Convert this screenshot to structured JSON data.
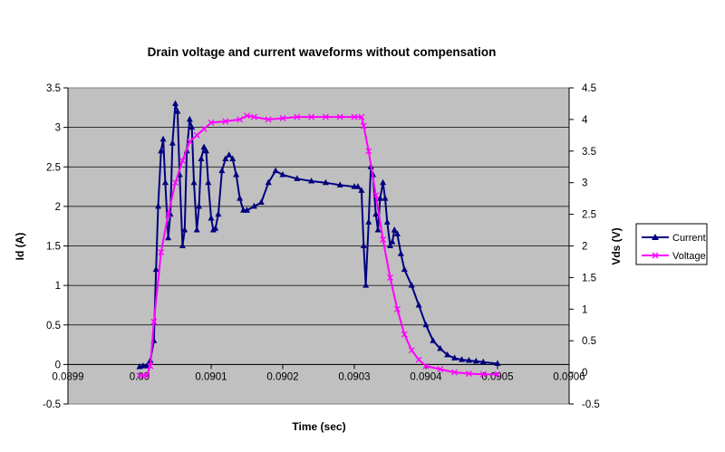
{
  "chart_data": {
    "type": "line",
    "title": "Drain voltage and current waveforms without compensation",
    "xlabel": "Time (sec)",
    "ylabel": "Id (A)",
    "y2label": "Vds (V)",
    "xlim": [
      0.0899,
      0.0906
    ],
    "ylim": [
      -0.5,
      3.5
    ],
    "y2lim": [
      -0.5,
      4.5
    ],
    "xticks": [
      0.0899,
      0.09,
      0.0901,
      0.0902,
      0.0903,
      0.0904,
      0.0905,
      0.0906
    ],
    "xtick_labels": [
      "0.0899",
      "0.09",
      "0.0901",
      "0.0902",
      "0.0903",
      "0.0904",
      "0.0905",
      "0.0906"
    ],
    "yticks": [
      -0.5,
      0,
      0.5,
      1,
      1.5,
      2,
      2.5,
      3,
      3.5
    ],
    "ytick_labels": [
      "-0.5",
      "0",
      "0.5",
      "1",
      "1.5",
      "2",
      "2.5",
      "3",
      "3.5"
    ],
    "y2ticks": [
      -0.5,
      0,
      0.5,
      1,
      1.5,
      2,
      2.5,
      3,
      3.5,
      4,
      4.5
    ],
    "y2tick_labels": [
      "-0.5",
      "0",
      "0.5",
      "1",
      "1.5",
      "2",
      "2.5",
      "3",
      "3.5",
      "4",
      "4.5"
    ],
    "grid": true,
    "plot_background": "#c0c0c0",
    "legend_position": "right",
    "series": [
      {
        "name": "Current",
        "axis": "left",
        "color": "#000080",
        "marker": "triangle",
        "points": [
          [
            0.09,
            -0.03
          ],
          [
            0.090005,
            -0.02
          ],
          [
            0.09001,
            -0.02
          ],
          [
            0.090015,
            0.05
          ],
          [
            0.09002,
            0.3
          ],
          [
            0.090023,
            1.2
          ],
          [
            0.090026,
            2.0
          ],
          [
            0.09003,
            2.7
          ],
          [
            0.090033,
            2.85
          ],
          [
            0.090036,
            2.3
          ],
          [
            0.09004,
            1.6
          ],
          [
            0.090043,
            1.9
          ],
          [
            0.090046,
            2.8
          ],
          [
            0.09005,
            3.3
          ],
          [
            0.090053,
            3.2
          ],
          [
            0.090056,
            2.4
          ],
          [
            0.09006,
            1.5
          ],
          [
            0.090063,
            1.7
          ],
          [
            0.090066,
            2.7
          ],
          [
            0.09007,
            3.1
          ],
          [
            0.090073,
            3.0
          ],
          [
            0.090076,
            2.3
          ],
          [
            0.09008,
            1.7
          ],
          [
            0.090083,
            2.0
          ],
          [
            0.090086,
            2.6
          ],
          [
            0.09009,
            2.75
          ],
          [
            0.090093,
            2.7
          ],
          [
            0.090096,
            2.3
          ],
          [
            0.0901,
            1.85
          ],
          [
            0.090103,
            1.7
          ],
          [
            0.090106,
            1.72
          ],
          [
            0.09011,
            1.9
          ],
          [
            0.090115,
            2.45
          ],
          [
            0.09012,
            2.6
          ],
          [
            0.090125,
            2.65
          ],
          [
            0.09013,
            2.6
          ],
          [
            0.090135,
            2.4
          ],
          [
            0.09014,
            2.1
          ],
          [
            0.090145,
            1.95
          ],
          [
            0.09015,
            1.95
          ],
          [
            0.09016,
            2.0
          ],
          [
            0.09017,
            2.05
          ],
          [
            0.09018,
            2.3
          ],
          [
            0.09019,
            2.45
          ],
          [
            0.0902,
            2.4
          ],
          [
            0.09022,
            2.35
          ],
          [
            0.09024,
            2.32
          ],
          [
            0.09026,
            2.3
          ],
          [
            0.09028,
            2.27
          ],
          [
            0.0903,
            2.25
          ],
          [
            0.090305,
            2.25
          ],
          [
            0.09031,
            2.2
          ],
          [
            0.090313,
            1.5
          ],
          [
            0.090316,
            1.0
          ],
          [
            0.09032,
            1.8
          ],
          [
            0.090323,
            2.5
          ],
          [
            0.090326,
            2.4
          ],
          [
            0.09033,
            1.9
          ],
          [
            0.090333,
            1.7
          ],
          [
            0.090336,
            2.1
          ],
          [
            0.09034,
            2.3
          ],
          [
            0.090343,
            2.1
          ],
          [
            0.090346,
            1.8
          ],
          [
            0.09035,
            1.5
          ],
          [
            0.090353,
            1.55
          ],
          [
            0.090356,
            1.7
          ],
          [
            0.09036,
            1.65
          ],
          [
            0.090365,
            1.4
          ],
          [
            0.09037,
            1.2
          ],
          [
            0.09038,
            1.0
          ],
          [
            0.09039,
            0.75
          ],
          [
            0.0904,
            0.5
          ],
          [
            0.09041,
            0.3
          ],
          [
            0.09042,
            0.2
          ],
          [
            0.09043,
            0.12
          ],
          [
            0.09044,
            0.08
          ],
          [
            0.09045,
            0.06
          ],
          [
            0.09046,
            0.05
          ],
          [
            0.09047,
            0.04
          ],
          [
            0.09048,
            0.03
          ],
          [
            0.0905,
            0.01
          ]
        ]
      },
      {
        "name": "Voltage",
        "axis": "right",
        "color": "#ff00ff",
        "marker": "x",
        "points": [
          [
            0.09,
            -0.05
          ],
          [
            0.09001,
            -0.05
          ],
          [
            0.090015,
            0.1
          ],
          [
            0.09002,
            0.8
          ],
          [
            0.09003,
            1.9
          ],
          [
            0.09004,
            2.5
          ],
          [
            0.09005,
            3.0
          ],
          [
            0.09006,
            3.35
          ],
          [
            0.09007,
            3.65
          ],
          [
            0.09008,
            3.75
          ],
          [
            0.09009,
            3.85
          ],
          [
            0.0901,
            3.95
          ],
          [
            0.09012,
            3.97
          ],
          [
            0.09014,
            4.0
          ],
          [
            0.09015,
            4.06
          ],
          [
            0.09016,
            4.04
          ],
          [
            0.09018,
            4.0
          ],
          [
            0.0902,
            4.02
          ],
          [
            0.09022,
            4.04
          ],
          [
            0.09024,
            4.04
          ],
          [
            0.09026,
            4.04
          ],
          [
            0.09028,
            4.04
          ],
          [
            0.0903,
            4.04
          ],
          [
            0.09031,
            4.04
          ],
          [
            0.090313,
            3.9
          ],
          [
            0.09032,
            3.5
          ],
          [
            0.09033,
            2.8
          ],
          [
            0.09034,
            2.1
          ],
          [
            0.09035,
            1.5
          ],
          [
            0.09036,
            1.0
          ],
          [
            0.09037,
            0.6
          ],
          [
            0.09038,
            0.35
          ],
          [
            0.09039,
            0.2
          ],
          [
            0.0904,
            0.1
          ],
          [
            0.09042,
            0.05
          ],
          [
            0.09044,
            0.0
          ],
          [
            0.09046,
            -0.02
          ],
          [
            0.09048,
            -0.03
          ],
          [
            0.0905,
            -0.03
          ]
        ]
      }
    ]
  }
}
